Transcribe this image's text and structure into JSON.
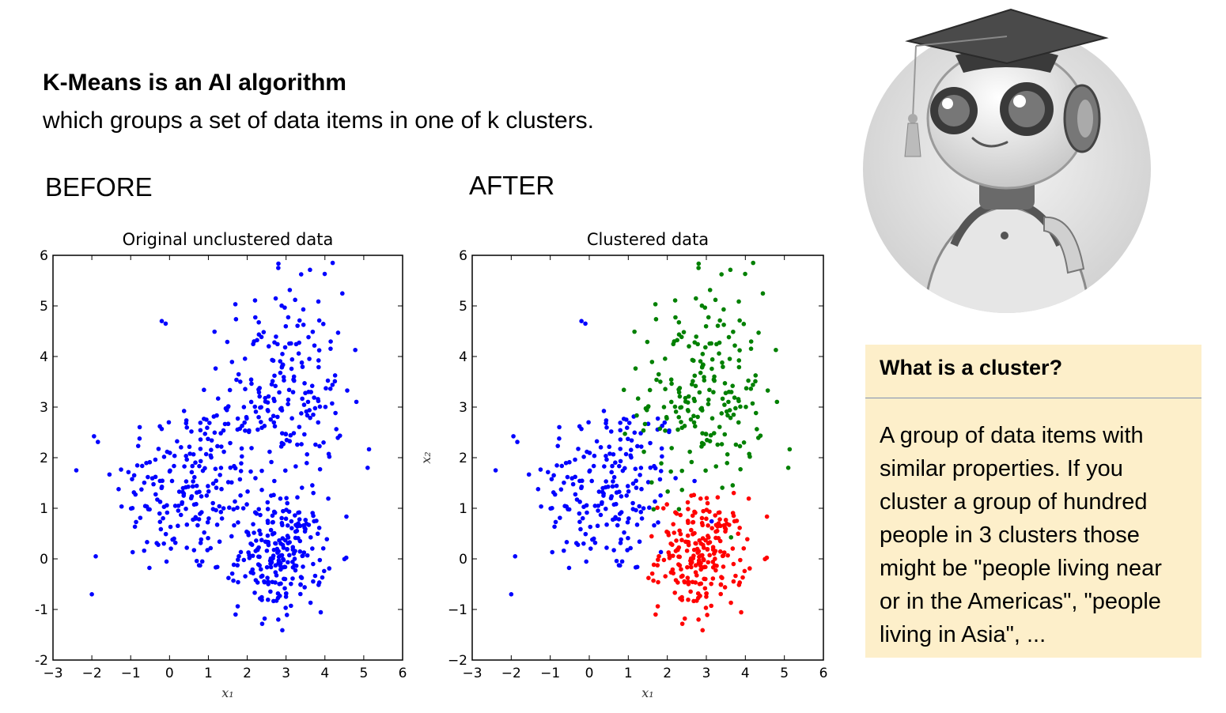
{
  "header": {
    "title": "K-Means is an AI algorithm",
    "subtitle": "which groups a set of data items in one of k clusters."
  },
  "labels": {
    "before": "BEFORE",
    "after": "AFTER"
  },
  "info_card": {
    "title": "What is a cluster?",
    "body": "A group of data items with similar properties. If you cluster a group of hundred people in 3 clusters those might be \"people living near or in the Americas\", \"people living in Asia\", ..."
  },
  "avatar": {
    "icon": "graduate-robot-icon"
  },
  "chart_data": [
    {
      "type": "scatter",
      "title": "Original unclustered data",
      "xlabel": "x₁",
      "ylabel": "",
      "xlim": [
        -3,
        6
      ],
      "ylim": [
        -2,
        6
      ],
      "xticks": [
        "−3",
        "−2",
        "−1",
        "0",
        "1",
        "2",
        "3",
        "4",
        "5",
        "6"
      ],
      "yticks": [
        "-2",
        "-1",
        "0",
        "1",
        "2",
        "3",
        "4",
        "5",
        "6"
      ],
      "grid": false,
      "series": [
        {
          "color": "#0000ff",
          "clusters": [
            {
              "cx": 0.5,
              "cy": 1.4,
              "sx": 0.95,
              "sy": 0.9,
              "n": 210
            },
            {
              "cx": 2.9,
              "cy": 3.3,
              "sx": 0.8,
              "sy": 1.0,
              "n": 210
            },
            {
              "cx": 2.9,
              "cy": 0.1,
              "sx": 0.55,
              "sy": 0.55,
              "n": 230
            }
          ],
          "points": [
            [
              -2.4,
              1.75
            ],
            [
              -2.0,
              -0.7
            ],
            [
              -1.9,
              0.05
            ],
            [
              -0.2,
              4.7
            ],
            [
              -0.1,
              4.65
            ],
            [
              4.2,
              5.85
            ],
            [
              2.8,
              5.75
            ],
            [
              5.1,
              1.8
            ],
            [
              1.7,
              -1.1
            ],
            [
              2.8,
              -1.2
            ]
          ]
        }
      ]
    },
    {
      "type": "scatter",
      "title": "Clustered data",
      "xlabel": "x₁",
      "ylabel": "x₂",
      "xlim": [
        -3,
        6
      ],
      "ylim": [
        -2,
        6
      ],
      "xticks": [
        "−3",
        "−2",
        "−1",
        "0",
        "1",
        "2",
        "3",
        "4",
        "5",
        "6"
      ],
      "yticks": [
        "−2",
        "−1",
        "0",
        "1",
        "2",
        "3",
        "4",
        "5",
        "6"
      ],
      "grid": false,
      "series": [
        {
          "color": "#0000ff",
          "clusters": [
            {
              "cx": 0.5,
              "cy": 1.4,
              "sx": 0.95,
              "sy": 0.9,
              "n": 210
            }
          ],
          "points": [
            [
              -2.4,
              1.75
            ],
            [
              -2.0,
              -0.7
            ],
            [
              -1.9,
              0.05
            ],
            [
              -0.2,
              4.7
            ],
            [
              -0.1,
              4.65
            ]
          ]
        },
        {
          "color": "#008000",
          "clusters": [
            {
              "cx": 2.9,
              "cy": 3.3,
              "sx": 0.8,
              "sy": 1.0,
              "n": 210
            }
          ],
          "points": [
            [
              4.2,
              5.85
            ],
            [
              2.8,
              5.75
            ],
            [
              5.1,
              1.8
            ]
          ]
        },
        {
          "color": "#ff0000",
          "clusters": [
            {
              "cx": 2.9,
              "cy": 0.1,
              "sx": 0.55,
              "sy": 0.55,
              "n": 230
            }
          ],
          "points": [
            [
              1.7,
              -1.1
            ],
            [
              2.8,
              -1.2
            ]
          ]
        }
      ]
    }
  ]
}
